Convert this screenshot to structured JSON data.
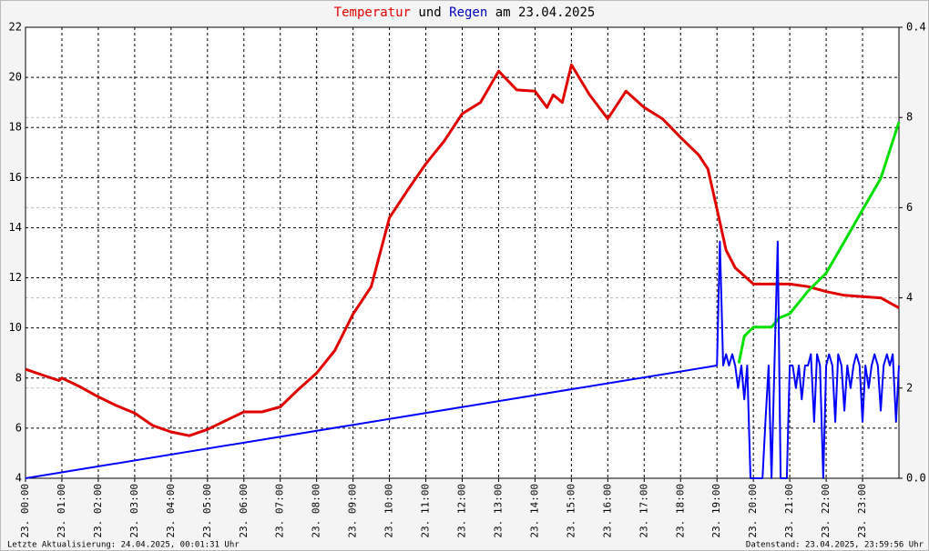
{
  "chart_data": {
    "type": "line",
    "title": [
      "Temperatur",
      "und",
      "Regen",
      "am 23.04.2025"
    ],
    "title_colors": [
      "#e00000",
      "#000000",
      "#0000c0",
      "#000000"
    ],
    "footer_left": "Letzte Aktualisierung: 24.04.2025, 00:01:31 Uhr",
    "footer_right": "Datenstand: 23.04.2025, 23:59:56 Uhr",
    "xlim": [
      0,
      24
    ],
    "xticks": [
      {
        "value": 0,
        "label": "23. 00:00"
      },
      {
        "value": 1,
        "label": "23. 01:00"
      },
      {
        "value": 2,
        "label": "23. 02:00"
      },
      {
        "value": 3,
        "label": "23. 03:00"
      },
      {
        "value": 4,
        "label": "23. 04:00"
      },
      {
        "value": 5,
        "label": "23. 05:00"
      },
      {
        "value": 6,
        "label": "23. 06:00"
      },
      {
        "value": 7,
        "label": "23. 07:00"
      },
      {
        "value": 8,
        "label": "23. 08:00"
      },
      {
        "value": 9,
        "label": "23. 09:00"
      },
      {
        "value": 10,
        "label": "23. 10:00"
      },
      {
        "value": 11,
        "label": "23. 11:00"
      },
      {
        "value": 12,
        "label": "23. 12:00"
      },
      {
        "value": 13,
        "label": "23. 13:00"
      },
      {
        "value": 14,
        "label": "23. 14:00"
      },
      {
        "value": 15,
        "label": "23. 15:00"
      },
      {
        "value": 16,
        "label": "23. 16:00"
      },
      {
        "value": 17,
        "label": "23. 17:00"
      },
      {
        "value": 18,
        "label": "23. 18:00"
      },
      {
        "value": 19,
        "label": "23. 19:00"
      },
      {
        "value": 20,
        "label": "23. 20:00"
      },
      {
        "value": 21,
        "label": "23. 21:00"
      },
      {
        "value": 22,
        "label": "23. 22:00"
      },
      {
        "value": 23,
        "label": "23. 23:00"
      }
    ],
    "ylim": [
      4,
      22
    ],
    "yticks": [
      4,
      6,
      8,
      10,
      12,
      14,
      16,
      18,
      20,
      22
    ],
    "y2lim": [
      0,
      10
    ],
    "y2ticks": [
      2,
      4,
      6,
      8
    ],
    "y2color": "#00c000",
    "y3lim": [
      0,
      0.4
    ],
    "y3ticks": [
      {
        "value": 0,
        "label": "0.0"
      },
      0.4
    ],
    "grid": true,
    "series": [
      {
        "name": "Temperatur",
        "color": "#e00000",
        "axis": "y",
        "x": [
          0,
          0.5,
          0.92,
          1,
          1.5,
          2,
          2.5,
          3,
          3.5,
          4,
          4.5,
          5,
          5.5,
          6,
          6.5,
          7,
          7.5,
          8,
          8.5,
          9,
          9.5,
          10,
          10.5,
          11,
          11.5,
          12,
          12.5,
          13,
          13.5,
          14,
          14.33,
          14.5,
          14.75,
          15,
          15.5,
          16,
          16.5,
          17,
          17.5,
          18,
          18.5,
          18.75,
          19,
          19.25,
          19.5,
          20,
          20.5,
          21,
          21.5,
          22,
          22.5,
          23,
          23.5,
          24
        ],
        "values": [
          8.35,
          8.1,
          7.9,
          8.0,
          7.65,
          7.25,
          6.9,
          6.6,
          6.1,
          5.85,
          5.7,
          5.95,
          6.3,
          6.65,
          6.65,
          6.85,
          7.55,
          8.2,
          9.1,
          10.55,
          11.65,
          14.4,
          15.5,
          16.55,
          17.45,
          18.55,
          19.0,
          20.25,
          19.5,
          19.45,
          18.8,
          19.3,
          19.0,
          20.5,
          19.3,
          18.35,
          19.45,
          18.8,
          18.35,
          17.6,
          16.9,
          16.35,
          14.75,
          13.1,
          12.4,
          11.75,
          11.75,
          11.75,
          11.65,
          11.45,
          11.3,
          11.25,
          11.2,
          10.8
        ]
      },
      {
        "color": "#00e000",
        "axis": "y2",
        "x": [
          19.6,
          19.75,
          20,
          20.5,
          20.7,
          21,
          21.5,
          22,
          22.5,
          23,
          23.5,
          24
        ],
        "values": [
          2.55,
          3.15,
          3.35,
          3.35,
          3.55,
          3.65,
          4.15,
          4.55,
          5.25,
          5.95,
          6.65,
          7.9
        ]
      },
      {
        "name": "Regen",
        "color": "#0000ff",
        "axis": "y3",
        "x": [
          0,
          19,
          19.08,
          19.17,
          19.25,
          19.33,
          19.42,
          19.5,
          19.58,
          19.67,
          19.75,
          19.83,
          19.92,
          20,
          20.08,
          20.17,
          20.25,
          20.33,
          20.42,
          20.5,
          20.58,
          20.67,
          20.75,
          20.83,
          20.92,
          21,
          21.08,
          21.17,
          21.25,
          21.33,
          21.42,
          21.5,
          21.58,
          21.67,
          21.75,
          21.83,
          21.92,
          22,
          22.08,
          22.17,
          22.25,
          22.33,
          22.42,
          22.5,
          22.58,
          22.67,
          22.75,
          22.83,
          22.92,
          23,
          23.08,
          23.17,
          23.25,
          23.33,
          23.42,
          23.5,
          23.58,
          23.67,
          23.75,
          23.83,
          23.92,
          24
        ],
        "values": [
          0,
          0.1,
          0.21,
          0.1,
          0.11,
          0.1,
          0.11,
          0.1,
          0.08,
          0.1,
          0.07,
          0.1,
          0,
          0,
          0,
          0,
          0,
          0.05,
          0.1,
          0,
          0.1,
          0.21,
          0,
          0,
          0,
          0.1,
          0.1,
          0.08,
          0.1,
          0.07,
          0.1,
          0.1,
          0.11,
          0.05,
          0.11,
          0.1,
          0,
          0.1,
          0.11,
          0.1,
          0.05,
          0.11,
          0.1,
          0.06,
          0.1,
          0.08,
          0.1,
          0.11,
          0.1,
          0.05,
          0.1,
          0.08,
          0.1,
          0.11,
          0.1,
          0.06,
          0.1,
          0.11,
          0.1,
          0.11,
          0.05,
          0.1
        ]
      }
    ]
  }
}
